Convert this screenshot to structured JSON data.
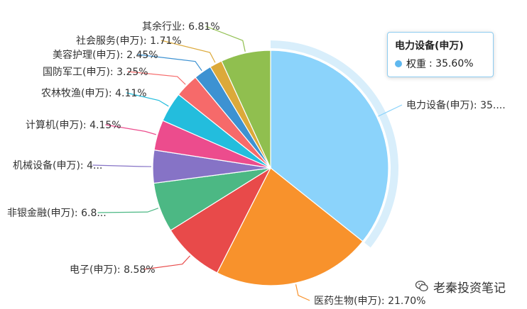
{
  "chart_data": {
    "type": "pie",
    "slices": [
      {
        "name": "电力设备(申万)",
        "value": 35.6,
        "label": "电力设备(申万): 35....",
        "color": "#8bd3fb"
      },
      {
        "name": "医药生物(申万)",
        "value": 21.7,
        "label": "医药生物(申万): 21.70%",
        "color": "#f8922c"
      },
      {
        "name": "电子(申万)",
        "value": 8.58,
        "label": "电子(申万): 8.58%",
        "color": "#e84a4a"
      },
      {
        "name": "非银金融(申万)",
        "value": 6.8,
        "label": "非银金融(申万): 6.8...",
        "color": "#4cb884"
      },
      {
        "name": "机械设备(申万)",
        "value": 4.5,
        "label": "机械设备(申万): 4...",
        "color": "#8673c6"
      },
      {
        "name": "计算机(申万)",
        "value": 4.15,
        "label": "计算机(申万): 4.15%",
        "color": "#ec4c8d"
      },
      {
        "name": "农林牧渔(申万)",
        "value": 4.11,
        "label": "农林牧渔(申万): 4.11%",
        "color": "#23bddd"
      },
      {
        "name": "国防军工(申万)",
        "value": 3.25,
        "label": "国防军工(申万): 3.25%",
        "color": "#f66a6a"
      },
      {
        "name": "美容护理(申万)",
        "value": 2.45,
        "label": "美容护理(申万): 2.45%",
        "color": "#3d92d2"
      },
      {
        "name": "社会服务(申万)",
        "value": 1.71,
        "label": "社会服务(申万): 1.71%",
        "color": "#dca93a"
      },
      {
        "name": "其余行业",
        "value": 6.81,
        "label": "其余行业: 6.81%",
        "color": "#90bf4f"
      }
    ],
    "highlighted_slice": "电力设备(申万)",
    "highlight_ring_color": "#d8eefb"
  },
  "tooltip": {
    "title": "电力设备(申万)",
    "series_name": "权重",
    "value_text": ": 35.60%",
    "dot_color": "#5fb8ef"
  },
  "watermark": {
    "text": "老秦投资笔记",
    "icon": "wechat-icon"
  }
}
